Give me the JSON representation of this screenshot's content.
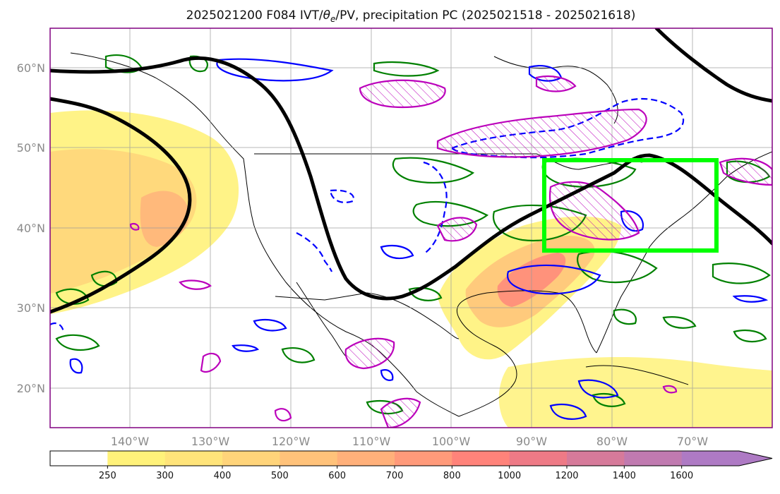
{
  "title": "2025021200 F084 IVT/θe/PV, precipitation PC (2025021518 - 2025021618)",
  "title_parts": {
    "prefix": "2025021200 F084 IVT/",
    "theta": "θ",
    "theta_sub": "e",
    "suffix": "/PV, precipitation PC (2025021518 - 2025021618)"
  },
  "map": {
    "projection": "PlateCarree",
    "lon_range": [
      -150,
      -60
    ],
    "lat_range": [
      15,
      65
    ],
    "lon_ticks": [
      "140°W",
      "130°W",
      "120°W",
      "110°W",
      "100°W",
      "90°W",
      "80°W",
      "70°W"
    ],
    "lon_tick_values": [
      -140,
      -130,
      -120,
      -110,
      -100,
      -90,
      -80,
      -70
    ],
    "lat_ticks": [
      "60°N",
      "50°N",
      "40°N",
      "30°N",
      "20°N"
    ],
    "lat_tick_values": [
      60,
      50,
      40,
      30,
      20
    ],
    "gridlines": true,
    "highlight_box": {
      "lon": [
        -88,
        -66
      ],
      "lat": [
        37,
        48.5
      ],
      "color": "#00ff00"
    },
    "colors": {
      "theta_e_contour": "#000000",
      "green_contour": "#008000",
      "blue_contour": "#0000ff",
      "magenta_contour": "#bb00bb",
      "box": "#00ff00",
      "frame": "#800080"
    }
  },
  "colorbar": {
    "levels": [
      "250",
      "300",
      "400",
      "500",
      "600",
      "700",
      "800",
      "1000",
      "1200",
      "1400",
      "1600"
    ],
    "colors": [
      "#ffffff",
      "#fff27a",
      "#ffe47a",
      "#ffd47a",
      "#ffc27a",
      "#ffb07a",
      "#ff9a7a",
      "#ff837a",
      "#ee7a86",
      "#d67a9a",
      "#c07ab0",
      "#ae7ac4"
    ],
    "extend": "max"
  }
}
